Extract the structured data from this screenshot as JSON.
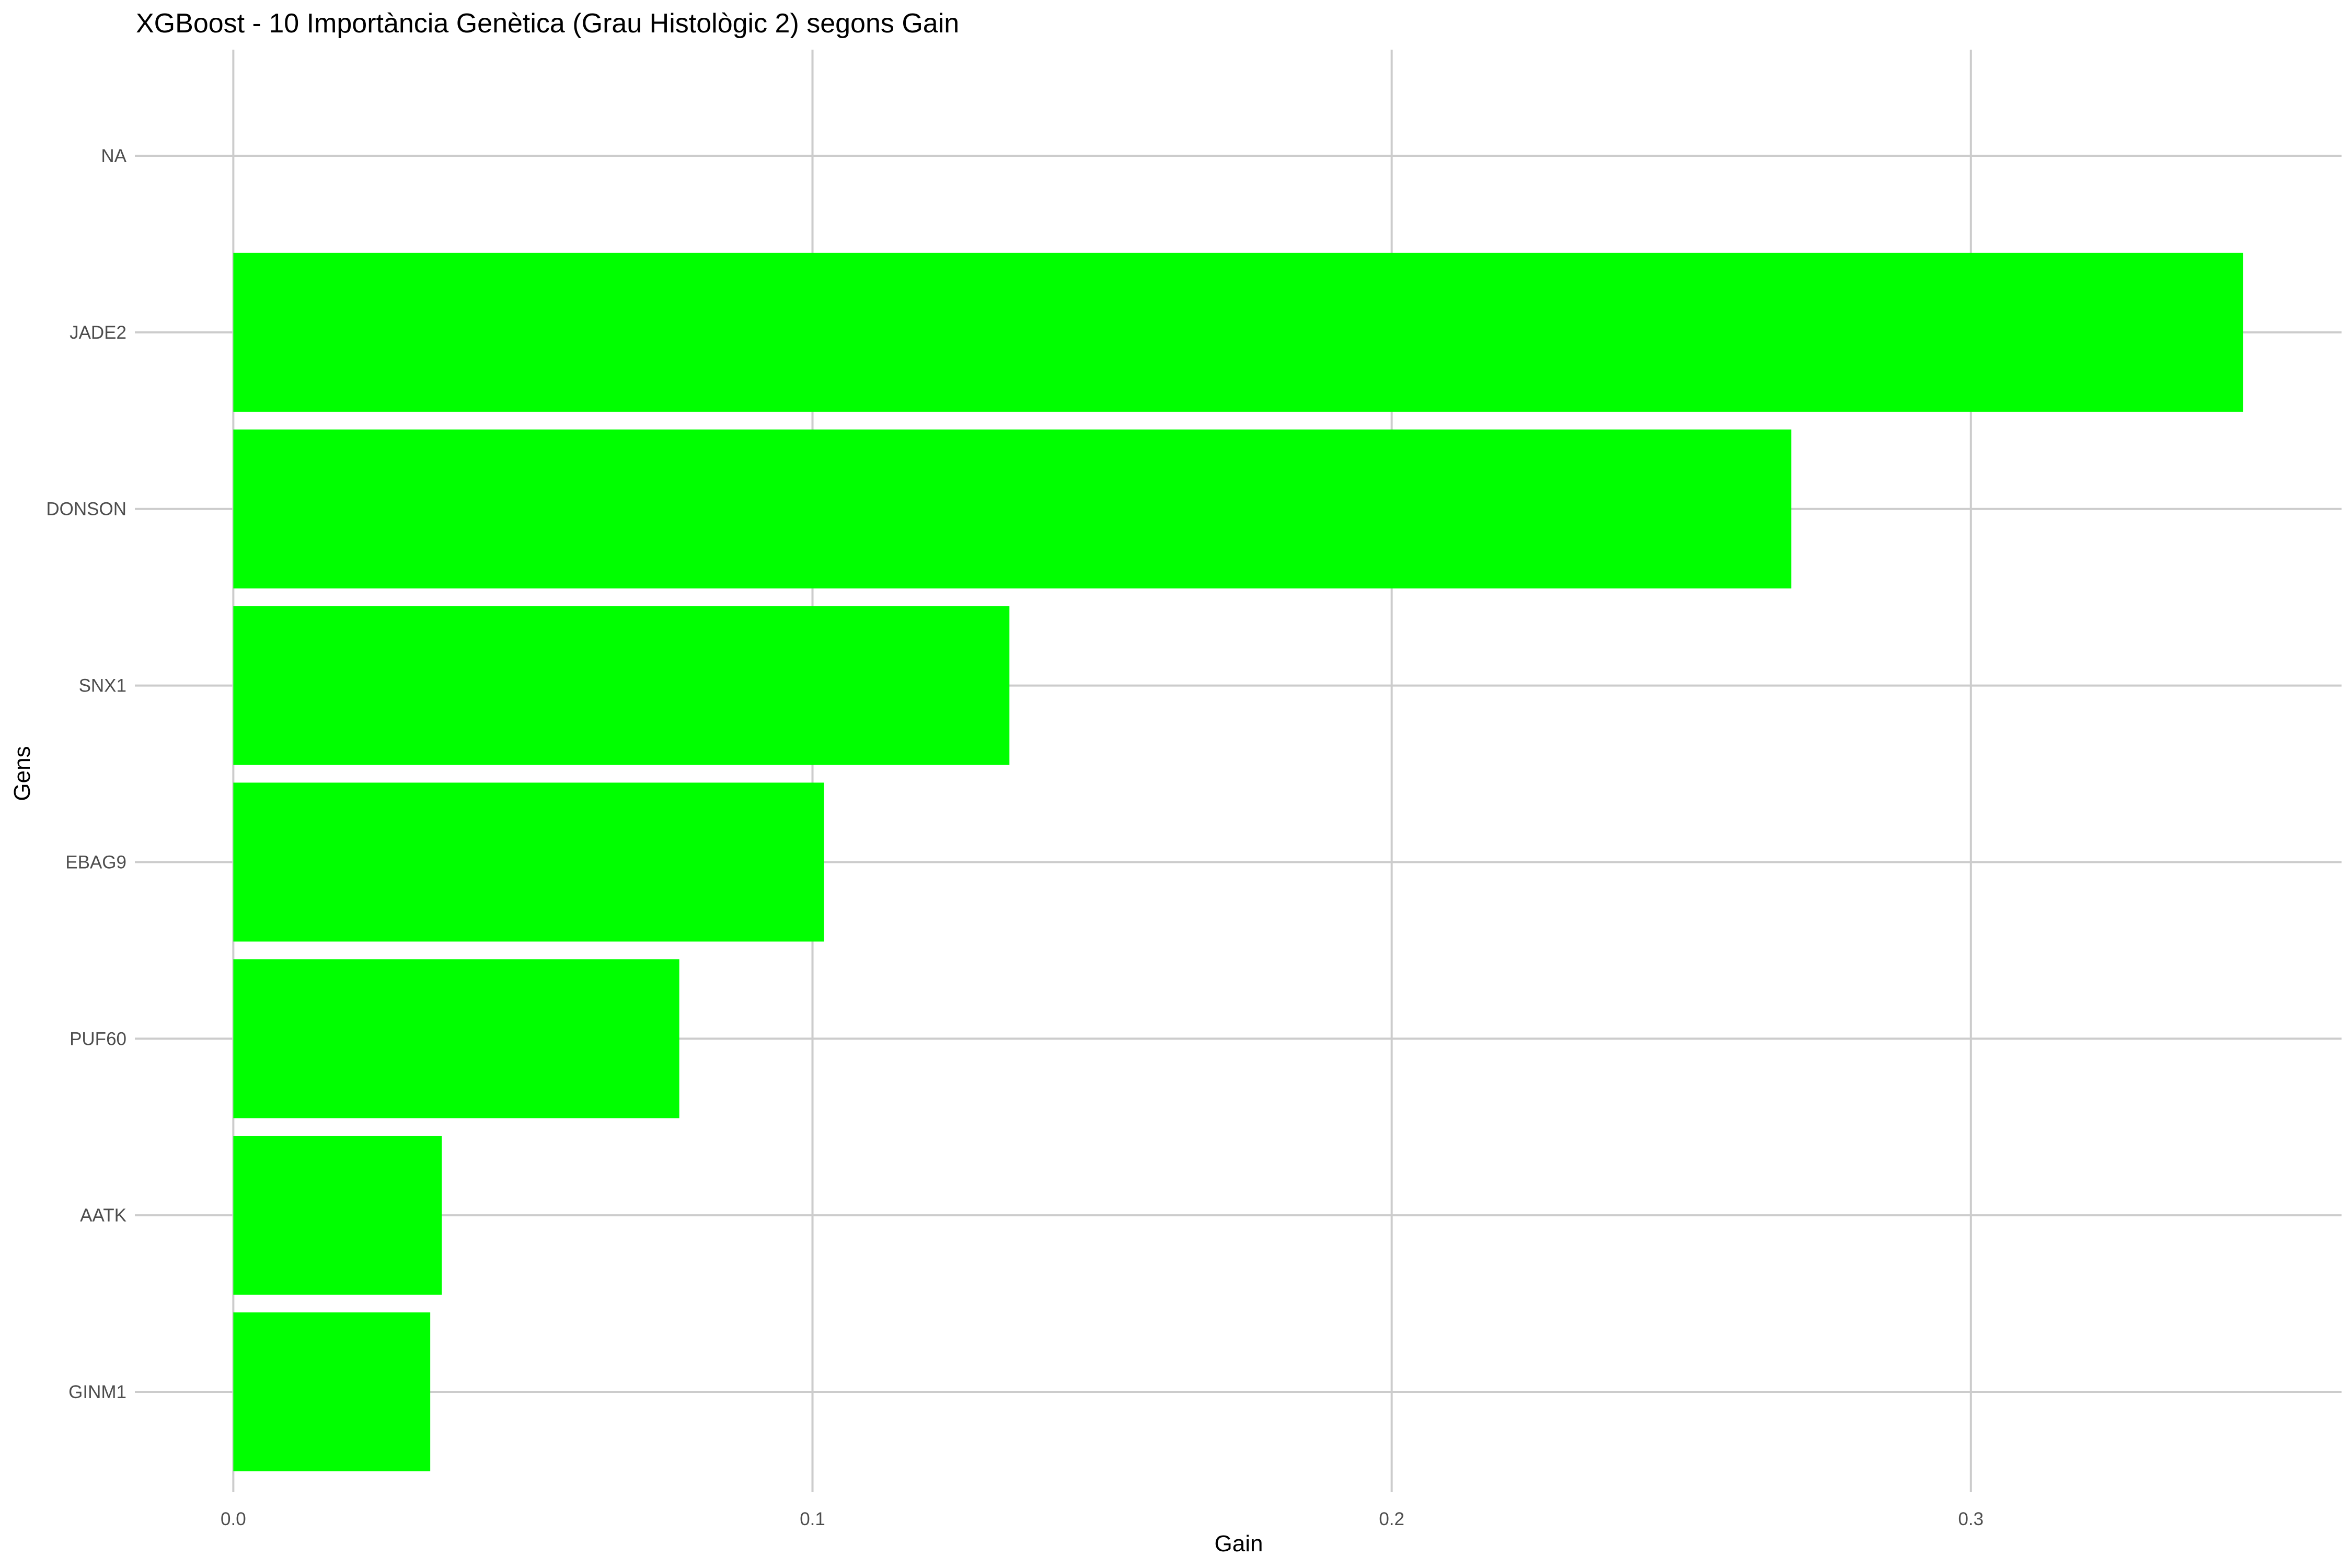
{
  "chart_data": {
    "type": "bar",
    "orientation": "horizontal",
    "title": "XGBoost - 10 Importància Genètica (Grau Histològic 2) segons Gain",
    "xlabel": "Gain",
    "ylabel": "Gens",
    "categories": [
      "NA",
      "JADE2",
      "DONSON",
      "SNX1",
      "EBAG9",
      "PUF60",
      "AATK",
      "GINM1"
    ],
    "values": [
      null,
      0.347,
      0.269,
      0.134,
      0.102,
      0.077,
      0.036,
      0.034
    ],
    "xlim": [
      -0.017,
      0.364
    ],
    "xticks": [
      0.0,
      0.1,
      0.2,
      0.3
    ],
    "xtick_labels": [
      "0.0",
      "0.1",
      "0.2",
      "0.3"
    ],
    "bar_color": "#00ff00",
    "grid_color": "#cccccc",
    "grid": true,
    "legend": "none"
  }
}
